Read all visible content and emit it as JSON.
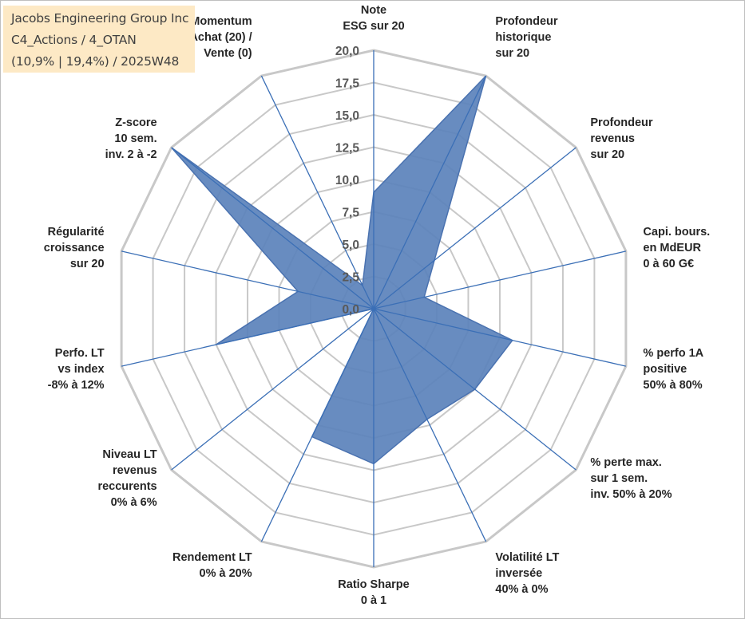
{
  "info": {
    "company": "Jacobs Engineering Group Inc",
    "category": "C4_Actions / 4_OTAN",
    "stats": "(10,9% | 19,4%) / 2025W48"
  },
  "colors": {
    "fill": "#5b82bb",
    "stroke": "#4a72b0",
    "spoke": "#3b6fb6",
    "grid": "#c8c8c8",
    "info_bg": "#fde9c5"
  },
  "chart_data": {
    "type": "radar",
    "rmin": 0,
    "rmax": 20,
    "tick_step": 2.5,
    "tick_labels": [
      "0,0",
      "2,5",
      "5,0",
      "7,5",
      "10,0",
      "12,5",
      "15,0",
      "17,5",
      "20,0"
    ],
    "grid": true,
    "axes": [
      {
        "label": [
          "Note",
          "ESG sur 20"
        ],
        "value": 9.0
      },
      {
        "label": [
          "Profondeur",
          "historique",
          "sur 20"
        ],
        "value": 20.0
      },
      {
        "label": [
          "Profondeur",
          "revenus",
          "sur 20"
        ],
        "value": 6.0
      },
      {
        "label": [
          "Capi. bours.",
          "en MdEUR",
          "0 à 60 G€"
        ],
        "value": 4.0
      },
      {
        "label": [
          "% perfo 1A",
          "positive",
          "50% à 80%"
        ],
        "value": 11.0
      },
      {
        "label": [
          "% perte max.",
          "sur 1 sem.",
          "inv. 50% à 20%"
        ],
        "value": 10.0
      },
      {
        "label": [
          "Volatilité LT",
          "inversée",
          "40% à 0%"
        ],
        "value": 9.5
      },
      {
        "label": [
          "Ratio Sharpe",
          "0 à 1"
        ],
        "value": 12.0
      },
      {
        "label": [
          "Rendement LT",
          "0% à 20%"
        ],
        "value": 11.0
      },
      {
        "label": [
          "Niveau LT",
          "revenus",
          "reccurents",
          "0% à 6%"
        ],
        "value": 0.0
      },
      {
        "label": [
          "Perfo. LT",
          "vs index",
          "-8% à 12%"
        ],
        "value": 12.5
      },
      {
        "label": [
          "Régularité",
          "croissance",
          "sur 20"
        ],
        "value": 6.0
      },
      {
        "label": [
          "Z-score",
          "10 sem.",
          "inv. 2 à -2"
        ],
        "value": 20.0
      },
      {
        "label": [
          "Momentum",
          "Achat (20) /",
          "Vente (0)"
        ],
        "value": 2.0
      }
    ]
  }
}
